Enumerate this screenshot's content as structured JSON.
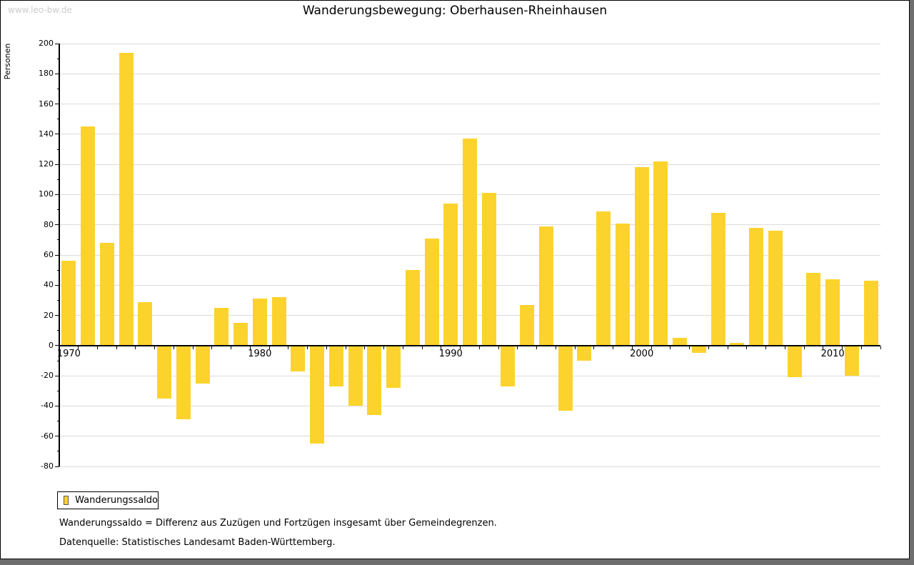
{
  "window": {
    "watermark": "www.leo-bw.de"
  },
  "title": "Wanderungsbewegung: Oberhausen-Rheinhausen",
  "y_axis_label": "Personen",
  "legend": {
    "label": "Wanderungssaldo",
    "swatch_color": "#FCD32D"
  },
  "footnotes": [
    "Wanderungssaldo = Differenz aus Zuzügen und Fortzügen insgesamt über Gemeindegrenzen.",
    "Datenquelle: Statistisches Landesamt Baden-Württemberg."
  ],
  "colors": {
    "bar": "#FCD32D",
    "gridline": "#dcdcdc",
    "axis": "#000000",
    "watermark": "#cccccc",
    "window_shadow": "#6e6e6e",
    "background": "#ffffff"
  },
  "chart_data": {
    "type": "bar",
    "title": "Wanderungsbewegung: Oberhausen-Rheinhausen",
    "xlabel": "",
    "ylabel": "Personen",
    "ylim": [
      -80,
      200
    ],
    "ytick_step": 20,
    "ytick_minor_step": 10,
    "grid": true,
    "legend_position": "bottom-left",
    "legend_entries": [
      "Wanderungssaldo"
    ],
    "bar_color": "#FCD32D",
    "x": [
      1970,
      1971,
      1972,
      1973,
      1974,
      1975,
      1976,
      1977,
      1978,
      1979,
      1980,
      1981,
      1982,
      1983,
      1984,
      1985,
      1986,
      1987,
      1988,
      1989,
      1990,
      1991,
      1992,
      1993,
      1994,
      1995,
      1996,
      1997,
      1998,
      1999,
      2000,
      2001,
      2002,
      2003,
      2004,
      2005,
      2006,
      2007,
      2008,
      2009,
      2010,
      2011,
      2012
    ],
    "values": [
      56,
      145,
      68,
      194,
      29,
      -35,
      -49,
      -25,
      25,
      15,
      31,
      32,
      -17,
      -65,
      -27,
      -40,
      -46,
      -28,
      50,
      71,
      94,
      137,
      101,
      -27,
      27,
      79,
      -43,
      -10,
      89,
      81,
      118,
      122,
      5,
      -5,
      88,
      2,
      78,
      76,
      -21,
      48,
      44,
      -20,
      43
    ],
    "labeled_xticks": [
      1970,
      1980,
      1990,
      2000,
      2010
    ]
  }
}
